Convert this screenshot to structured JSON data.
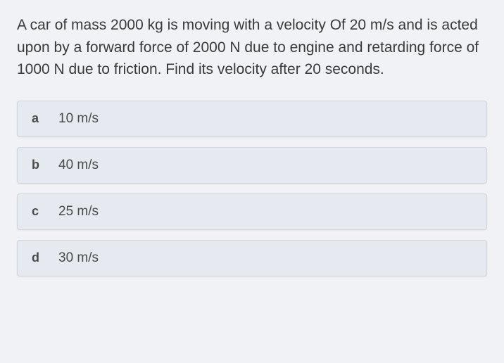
{
  "question": {
    "text": "A car of mass 2000 kg is moving with a velocity Of 20 m/s and is acted upon by a forward force of 2000 N due to engine and retarding force of 1000 N due to friction. Find its velocity after 20 seconds."
  },
  "options": [
    {
      "letter": "a",
      "text": "10 m/s"
    },
    {
      "letter": "b",
      "text": "40 m/s"
    },
    {
      "letter": "c",
      "text": "25 m/s"
    },
    {
      "letter": "d",
      "text": "30 m/s"
    }
  ],
  "styling": {
    "background_color": "#f0f2f5",
    "option_background": "#e6eaf0",
    "option_border": "#d0d5dc",
    "text_color": "#4a4a4a",
    "question_fontsize": 21,
    "option_fontsize": 19,
    "letter_fontsize": 18
  }
}
